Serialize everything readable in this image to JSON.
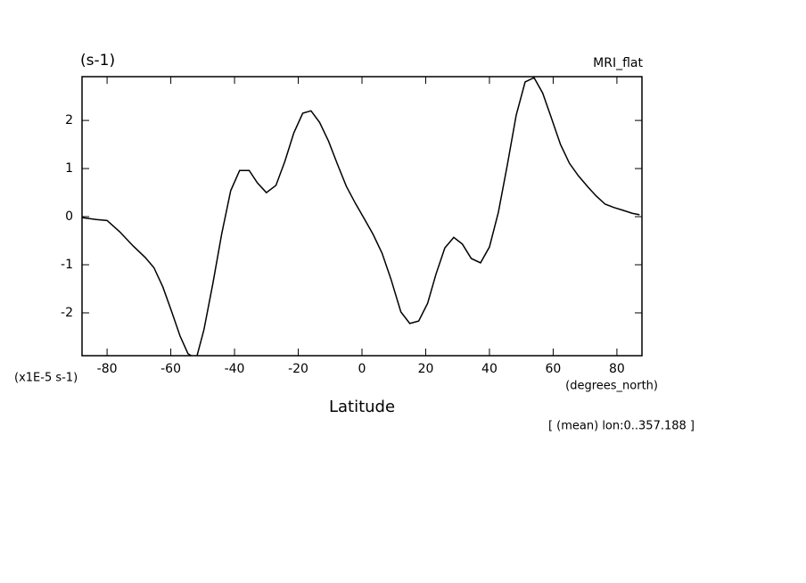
{
  "chart_data": {
    "type": "line",
    "title": "(s-1)",
    "subtitle": "MRI_flat",
    "y_unit_label": "(x1E-5 s-1)",
    "x_unit_label": "(degrees_north)",
    "x_label": "Latitude",
    "annotation": "[ (mean) lon:0..357.188 ]",
    "xlim": [
      -87.86,
      87.86
    ],
    "ylim": [
      -2.89,
      2.91
    ],
    "xticks": [
      -80,
      -60,
      -40,
      -20,
      0,
      20,
      40,
      60,
      80
    ],
    "yticks": [
      -2,
      -1,
      0,
      1,
      2
    ],
    "grid": false,
    "x": [
      -87.86,
      -83.4,
      -80,
      -76.1,
      -71.8,
      -68,
      -65.3,
      -62.5,
      -59.7,
      -57.1,
      -54.6,
      -52,
      -49.6,
      -46.8,
      -44,
      -41.2,
      -38.4,
      -35.4,
      -32.8,
      -30,
      -27,
      -24.2,
      -21.4,
      -18.6,
      -16,
      -13.3,
      -10.5,
      -7.7,
      -4.9,
      -2.1,
      0.7,
      3.5,
      6.3,
      9.1,
      12.2,
      15,
      17.8,
      20.6,
      23.2,
      26,
      28.8,
      31.5,
      34.3,
      37.2,
      40,
      42.8,
      45.6,
      48.4,
      51.2,
      54,
      56.7,
      59.5,
      62.3,
      65.1,
      67.9,
      71,
      73.5,
      76.3,
      79.1,
      82,
      84.8,
      87.1
    ],
    "series": [
      {
        "color": "#000000",
        "values": [
          -0.02,
          -0.06,
          -0.08,
          -0.31,
          -0.61,
          -0.85,
          -1.06,
          -1.46,
          -1.98,
          -2.48,
          -2.85,
          -2.95,
          -2.35,
          -1.39,
          -0.35,
          0.54,
          0.96,
          0.96,
          0.7,
          0.5,
          0.65,
          1.15,
          1.74,
          2.15,
          2.2,
          1.96,
          1.57,
          1.09,
          0.63,
          0.28,
          -0.04,
          -0.37,
          -0.76,
          -1.3,
          -1.98,
          -2.22,
          -2.17,
          -1.8,
          -1.2,
          -0.65,
          -0.43,
          -0.57,
          -0.87,
          -0.96,
          -0.63,
          0.09,
          1.07,
          2.11,
          2.8,
          2.89,
          2.57,
          2.04,
          1.5,
          1.11,
          0.85,
          0.61,
          0.43,
          0.26,
          0.19,
          0.13,
          0.07,
          0.04
        ]
      }
    ]
  }
}
